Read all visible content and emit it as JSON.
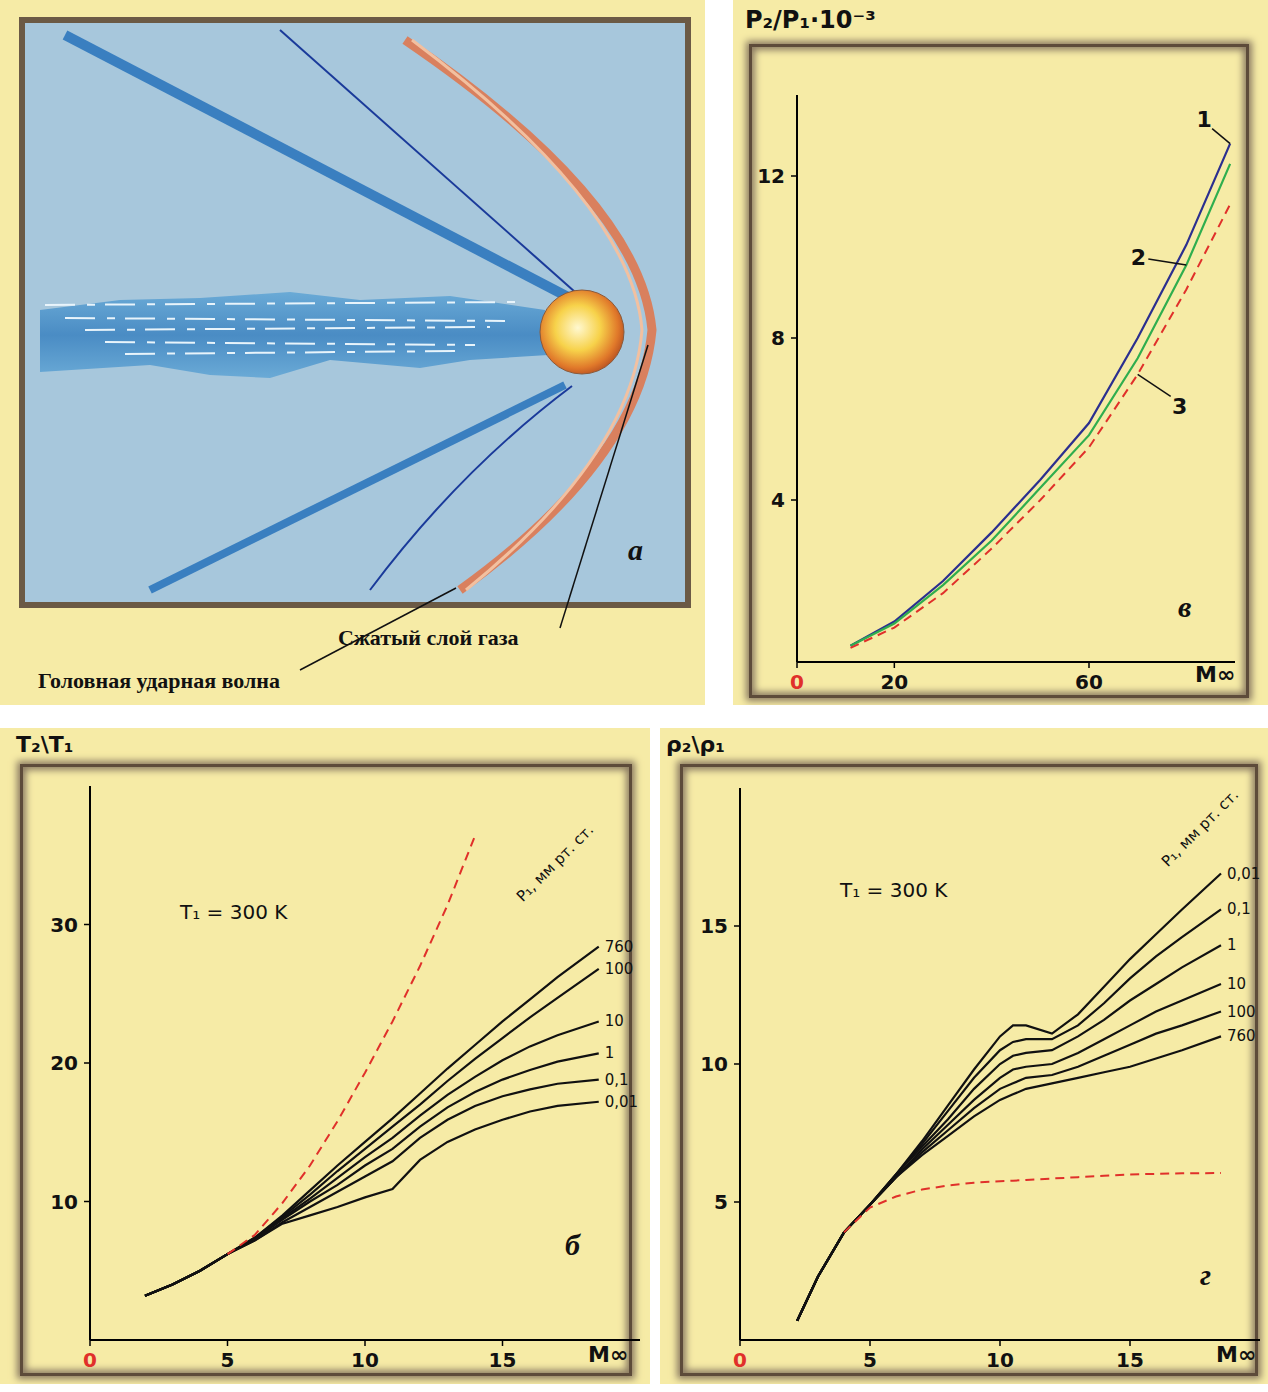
{
  "diagram": {
    "panel_label": "а",
    "labels": {
      "compressed_layer": "Сжатый слой газа",
      "bow_shock": "Головная ударная волна"
    }
  },
  "chart_data": [
    {
      "type": "line",
      "panel_label": "б",
      "ylabel": "T₂\\T₁",
      "xlabel": "M∞",
      "annotation": "T₁ = 300 K",
      "legend_title": "P₁, мм рт. ст.",
      "xlim": [
        0,
        20
      ],
      "xticks": [
        0,
        5,
        10,
        15
      ],
      "ylim": [
        0,
        40
      ],
      "yticks": [
        10,
        20,
        30
      ],
      "x": [
        2,
        3,
        4,
        5,
        6,
        7,
        8,
        9,
        10,
        11,
        12,
        13,
        14,
        15,
        16,
        17,
        18.5
      ],
      "series": [
        {
          "name": "760",
          "color": "#111111",
          "values": [
            3.2,
            4.0,
            5.0,
            6.2,
            7.4,
            9.0,
            10.8,
            12.6,
            14.3,
            16.0,
            17.8,
            19.6,
            21.3,
            23.0,
            24.6,
            26.2,
            28.4
          ]
        },
        {
          "name": "100",
          "color": "#111111",
          "values": [
            3.2,
            4.0,
            5.0,
            6.2,
            7.4,
            8.9,
            10.5,
            12.2,
            13.8,
            15.4,
            17.0,
            18.7,
            20.3,
            21.8,
            23.3,
            24.7,
            26.8
          ]
        },
        {
          "name": "10",
          "color": "#111111",
          "values": [
            3.2,
            4.0,
            5.0,
            6.2,
            7.3,
            8.8,
            10.2,
            11.7,
            13.2,
            14.6,
            16.2,
            17.7,
            19.0,
            20.2,
            21.2,
            22.0,
            23.0
          ]
        },
        {
          "name": "1",
          "color": "#111111",
          "values": [
            3.2,
            4.0,
            5.0,
            6.2,
            7.3,
            8.7,
            10.0,
            11.2,
            12.6,
            13.8,
            15.4,
            16.8,
            17.9,
            18.8,
            19.5,
            20.1,
            20.7
          ]
        },
        {
          "name": "0,1",
          "color": "#111111",
          "values": [
            3.2,
            4.0,
            5.0,
            6.2,
            7.2,
            8.5,
            9.6,
            10.7,
            11.8,
            12.9,
            14.6,
            15.9,
            16.9,
            17.6,
            18.1,
            18.5,
            18.8
          ]
        },
        {
          "name": "0,01",
          "color": "#111111",
          "values": [
            3.2,
            4.0,
            5.0,
            6.2,
            7.2,
            8.4,
            9.0,
            9.6,
            10.3,
            10.9,
            13.0,
            14.3,
            15.2,
            15.9,
            16.5,
            16.9,
            17.2
          ]
        },
        {
          "color": "#e0302a",
          "line_style": "dashed",
          "values": [
            null,
            null,
            null,
            6.2,
            7.6,
            9.9,
            12.6,
            15.8,
            19.3,
            23.0,
            27.0,
            31.4,
            36.4,
            null,
            null,
            null,
            null
          ]
        }
      ]
    },
    {
      "type": "line",
      "panel_label": "в",
      "ylabel": "P₂/P₁·10⁻³",
      "xlabel": "M∞",
      "xlim": [
        0,
        90
      ],
      "xticks": [
        0,
        20,
        60
      ],
      "ylim": [
        0,
        14
      ],
      "yticks": [
        4,
        8,
        12
      ],
      "x": [
        11,
        20,
        30,
        40,
        50,
        60,
        70,
        80,
        89
      ],
      "series": [
        {
          "name": "1",
          "color": "#2b2f8f",
          "values": [
            0.4,
            1.0,
            2.0,
            3.2,
            4.5,
            5.9,
            8.0,
            10.3,
            12.8
          ]
        },
        {
          "name": "2",
          "color": "#2fae4e",
          "values": [
            0.4,
            0.95,
            1.9,
            3.0,
            4.3,
            5.6,
            7.5,
            9.8,
            12.3
          ]
        },
        {
          "name": "3",
          "color": "#e0302a",
          "line_style": "dashed",
          "values": [
            0.35,
            0.85,
            1.7,
            2.8,
            4.0,
            5.3,
            7.1,
            9.2,
            11.3
          ]
        }
      ]
    },
    {
      "type": "line",
      "panel_label": "г",
      "ylabel": "ρ₂\\ρ₁",
      "xlabel": "M∞",
      "annotation": "T₁ = 300 K",
      "legend_title": "P₁, мм рт. ст.",
      "xlim": [
        0,
        20
      ],
      "xticks": [
        0,
        5,
        10,
        15
      ],
      "ylim": [
        0,
        20
      ],
      "yticks": [
        5,
        10,
        15
      ],
      "x": [
        2.2,
        3,
        4,
        5,
        6,
        7,
        8,
        9,
        10,
        10.5,
        11,
        12,
        13,
        14,
        15,
        16,
        17,
        18.5
      ],
      "series": [
        {
          "name": "0,01",
          "color": "#111111",
          "values": [
            0.7,
            2.3,
            3.9,
            4.9,
            6.0,
            7.2,
            8.5,
            9.8,
            11.0,
            11.4,
            11.4,
            11.1,
            11.8,
            12.8,
            13.8,
            14.7,
            15.6,
            16.9
          ]
        },
        {
          "name": "0,1",
          "color": "#111111",
          "values": [
            0.7,
            2.3,
            3.9,
            4.9,
            6.0,
            7.1,
            8.3,
            9.5,
            10.5,
            10.8,
            10.9,
            10.9,
            11.4,
            12.2,
            13.1,
            13.9,
            14.6,
            15.6
          ]
        },
        {
          "name": "1",
          "color": "#111111",
          "values": [
            0.7,
            2.3,
            3.9,
            4.9,
            6.0,
            7.0,
            8.0,
            9.1,
            10.0,
            10.3,
            10.4,
            10.5,
            11.0,
            11.6,
            12.3,
            12.9,
            13.5,
            14.3
          ]
        },
        {
          "name": "10",
          "color": "#111111",
          "values": [
            0.7,
            2.3,
            3.9,
            4.9,
            5.9,
            6.9,
            7.8,
            8.7,
            9.5,
            9.8,
            9.9,
            10.0,
            10.4,
            10.9,
            11.4,
            11.9,
            12.3,
            12.9
          ]
        },
        {
          "name": "100",
          "color": "#111111",
          "values": [
            0.7,
            2.3,
            3.9,
            4.9,
            5.9,
            6.8,
            7.6,
            8.4,
            9.1,
            9.3,
            9.5,
            9.6,
            9.9,
            10.3,
            10.7,
            11.1,
            11.4,
            11.9
          ]
        },
        {
          "name": "760",
          "color": "#111111",
          "values": [
            0.7,
            2.3,
            3.9,
            4.9,
            5.9,
            6.7,
            7.4,
            8.1,
            8.7,
            8.9,
            9.1,
            9.3,
            9.5,
            9.7,
            9.9,
            10.2,
            10.5,
            11.0
          ]
        },
        {
          "color": "#e0302a",
          "line_style": "dashed",
          "values": [
            null,
            null,
            3.9,
            4.8,
            5.2,
            5.45,
            5.6,
            5.7,
            5.75,
            5.77,
            5.8,
            5.85,
            5.9,
            5.95,
            6.0,
            6.02,
            6.04,
            6.05
          ]
        }
      ]
    }
  ]
}
